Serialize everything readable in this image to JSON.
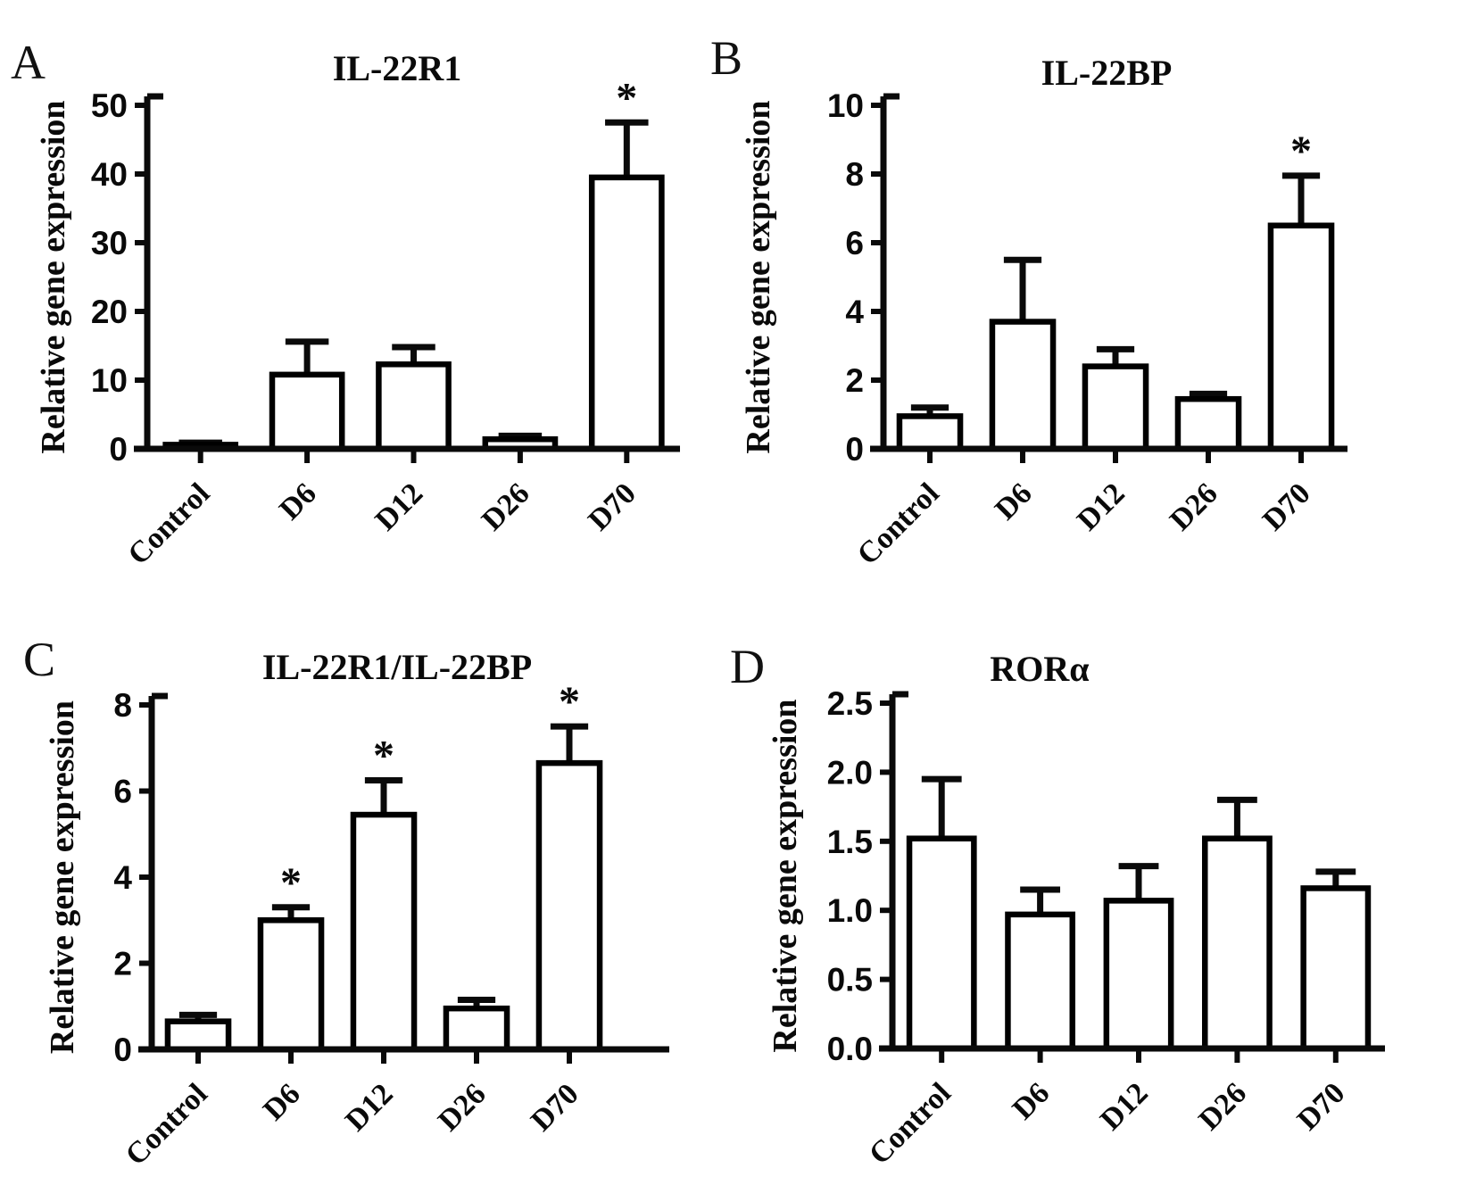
{
  "figure_type": "four-panel gene expression bar figure",
  "chart_data": [
    {
      "type": "bar",
      "panel": "A",
      "title": "IL-22R1",
      "xlabel": "",
      "ylabel": "Relative gene expression",
      "categories": [
        "Control",
        "D6",
        "D12",
        "D26",
        "D70"
      ],
      "values": [
        0.6,
        10.8,
        12.3,
        1.4,
        39.5
      ],
      "errors_plus": [
        0.3,
        4.8,
        2.5,
        0.5,
        8.0
      ],
      "significance": [
        "",
        "",
        "",
        "",
        "*"
      ],
      "ylim": [
        0,
        50
      ],
      "yticks": [
        0,
        10,
        20,
        30,
        40,
        50
      ],
      "ytick_labels": [
        "0",
        "10",
        "20",
        "30",
        "40",
        "50"
      ],
      "grid": false,
      "legend": "none",
      "bar_fill": "#ffffff",
      "bar_stroke": "#000000",
      "error_bar_style": "upper T-cap",
      "x_tick_label_rotation": -45
    },
    {
      "type": "bar",
      "panel": "B",
      "title": "IL-22BP",
      "xlabel": "",
      "ylabel": "Relative gene expression",
      "categories": [
        "Control",
        "D6",
        "D12",
        "D26",
        "D70"
      ],
      "values": [
        0.95,
        3.7,
        2.4,
        1.45,
        6.5
      ],
      "errors_plus": [
        0.25,
        1.8,
        0.5,
        0.15,
        1.45
      ],
      "significance": [
        "",
        "",
        "",
        "",
        "*"
      ],
      "ylim": [
        0,
        10
      ],
      "yticks": [
        0,
        2,
        4,
        6,
        8,
        10
      ],
      "ytick_labels": [
        "0",
        "2",
        "4",
        "6",
        "8",
        "10"
      ],
      "grid": false,
      "legend": "none",
      "bar_fill": "#ffffff",
      "bar_stroke": "#000000",
      "error_bar_style": "upper T-cap",
      "x_tick_label_rotation": -45
    },
    {
      "type": "bar",
      "panel": "C",
      "title": "IL-22R1/IL-22BP",
      "xlabel": "",
      "ylabel": "Relative gene expression",
      "categories": [
        "Control",
        "D6",
        "D12",
        "D26",
        "D70"
      ],
      "values": [
        0.65,
        3.0,
        5.45,
        0.95,
        6.65
      ],
      "errors_plus": [
        0.15,
        0.3,
        0.8,
        0.2,
        0.85
      ],
      "significance": [
        "",
        "*",
        "*",
        "",
        "*"
      ],
      "ylim": [
        0,
        8
      ],
      "yticks": [
        0,
        2,
        4,
        6,
        8
      ],
      "ytick_labels": [
        "0",
        "2",
        "4",
        "6",
        "8"
      ],
      "grid": false,
      "legend": "none",
      "bar_fill": "#ffffff",
      "bar_stroke": "#000000",
      "error_bar_style": "upper T-cap",
      "x_tick_label_rotation": -45
    },
    {
      "type": "bar",
      "panel": "D",
      "title": "RORα",
      "xlabel": "",
      "ylabel": "Relative gene expression",
      "categories": [
        "Control",
        "D6",
        "D12",
        "D26",
        "D70"
      ],
      "values": [
        1.52,
        0.97,
        1.07,
        1.52,
        1.16
      ],
      "errors_plus": [
        0.43,
        0.18,
        0.25,
        0.28,
        0.12
      ],
      "significance": [
        "",
        "",
        "",
        "",
        ""
      ],
      "ylim": [
        0,
        2.5
      ],
      "yticks": [
        0,
        0.5,
        1.0,
        1.5,
        2.0,
        2.5
      ],
      "ytick_labels": [
        "0.0",
        "0.5",
        "1.0",
        "1.5",
        "2.0",
        "2.5"
      ],
      "grid": false,
      "legend": "none",
      "bar_fill": "#ffffff",
      "bar_stroke": "#000000",
      "error_bar_style": "upper T-cap",
      "x_tick_label_rotation": -45
    }
  ]
}
